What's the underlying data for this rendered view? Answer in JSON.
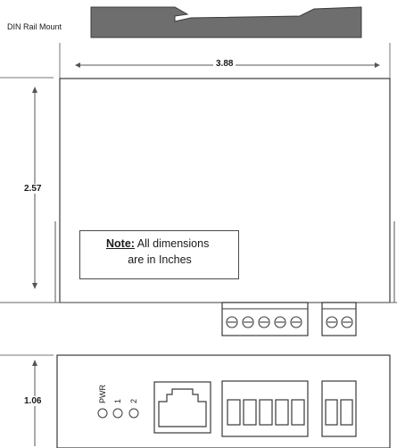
{
  "din_rail": {
    "label": "DIN Rail Mount"
  },
  "dimensions": {
    "width": "3.88",
    "height": "2.57",
    "depth": "1.06",
    "unit_note_label": "Note:",
    "unit_note_text_1": "All dimensions",
    "unit_note_text_2": "are in Inches"
  },
  "indicators": {
    "pwr": "PWR",
    "led1": "1",
    "led2": "2"
  },
  "colors": {
    "rail_fill": "#6e6e6e",
    "line": "#4a4a4a",
    "background": "#ffffff"
  }
}
